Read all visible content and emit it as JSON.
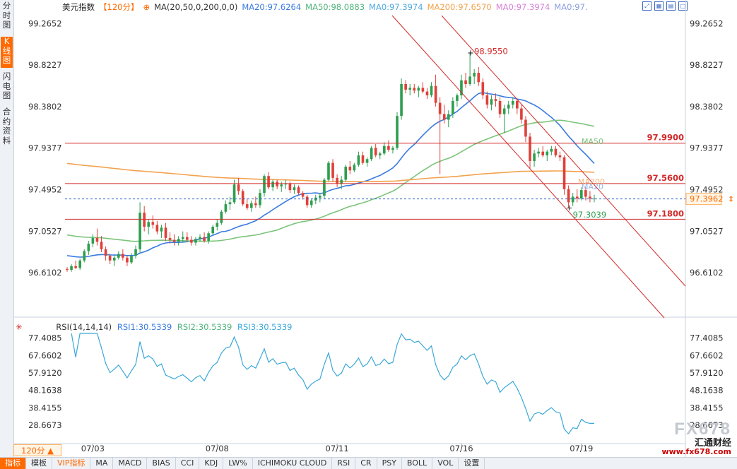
{
  "header": {
    "symbol": "美元指数",
    "period": "【120分】",
    "ma_label": "MA(20,50,0,200,0,0)",
    "ma20": "MA20:97.6264",
    "ma50": "MA50:98.0883",
    "ma0a": "MA0:97.3974",
    "ma200": "MA200:97.6570",
    "ma0b": "MA0:97.3974",
    "ma0c": "MA0:97."
  },
  "sidebar": [
    "分时图",
    "K线图",
    "闪电图",
    "合约资料"
  ],
  "price_axis": [
    "99.2652",
    "98.8227",
    "98.3802",
    "97.9377",
    "97.4952",
    "97.0527",
    "96.6102"
  ],
  "rsi_axis": [
    "77.4085",
    "67.6602",
    "57.9120",
    "48.1638",
    "38.4155",
    "28.6673"
  ],
  "dates": [
    "07/03",
    "07/08",
    "07/11",
    "07/16",
    "07/19"
  ],
  "levels": [
    "97.9900",
    "97.5600",
    "97.1800"
  ],
  "current_price": "97.3962",
  "high_label": "98.9550",
  "low_label": "97.3039",
  "line_labels": {
    "ma50": "MA50",
    "ma200": "MA200",
    "ma20": "MA20"
  },
  "rsi_header": {
    "title": "RSI(14,14,14)",
    "rsi1": "RSI1:30.5339",
    "rsi2": "RSI2:30.5339",
    "rsi3": "RSI3:30.5339"
  },
  "period_select": "120分 ▲",
  "bottom_tabs": [
    "指标",
    "模板",
    "VIP指标",
    "MA",
    "MACD",
    "BIAS",
    "CCI",
    "KDJ",
    "LW%",
    "ICHIMOKU CLOUD",
    "RSI",
    "CR",
    "PSY",
    "BOLL",
    "VOL",
    "设置"
  ],
  "watermark": {
    "logo": "FX678",
    "cn": "汇通财经",
    "url": "www.fx678.com"
  },
  "colors": {
    "up": "#2e9e4f",
    "down": "#e0403a",
    "ma20": "#3a7be0",
    "ma50": "#7cc47a",
    "ma200": "#f2a24e",
    "level": "#d32a2a",
    "current": "#2b63c4",
    "rsi": "#3aa8d8",
    "accent": "#ff6a00"
  },
  "chart_data": {
    "type": "candlestick",
    "price_range": [
      96.43,
      99.35
    ],
    "rsi_range": [
      20,
      80
    ],
    "candles": [
      [
        96.65,
        96.67,
        96.62,
        96.64
      ],
      [
        96.64,
        96.7,
        96.62,
        96.68
      ],
      [
        96.68,
        96.74,
        96.65,
        96.66
      ],
      [
        96.66,
        96.76,
        96.64,
        96.74
      ],
      [
        96.74,
        96.86,
        96.72,
        96.84
      ],
      [
        96.84,
        96.95,
        96.8,
        96.92
      ],
      [
        96.92,
        97.02,
        96.88,
        96.98
      ],
      [
        96.98,
        97.08,
        96.9,
        96.94
      ],
      [
        96.94,
        97.0,
        96.83,
        96.86
      ],
      [
        96.86,
        96.89,
        96.74,
        96.79
      ],
      [
        96.79,
        96.81,
        96.7,
        96.74
      ],
      [
        96.74,
        96.8,
        96.68,
        96.77
      ],
      [
        96.77,
        96.84,
        96.75,
        96.81
      ],
      [
        96.81,
        96.86,
        96.74,
        96.77
      ],
      [
        96.77,
        96.79,
        96.68,
        96.72
      ],
      [
        96.72,
        96.82,
        96.7,
        96.79
      ],
      [
        96.79,
        96.9,
        96.76,
        96.86
      ],
      [
        96.86,
        97.36,
        96.82,
        97.25
      ],
      [
        97.25,
        97.32,
        97.05,
        97.1
      ],
      [
        97.1,
        97.18,
        97.02,
        97.15
      ],
      [
        97.15,
        97.22,
        97.08,
        97.12
      ],
      [
        97.12,
        97.16,
        97.02,
        97.05
      ],
      [
        97.05,
        97.12,
        96.98,
        97.09
      ],
      [
        97.09,
        97.14,
        96.95,
        96.98
      ],
      [
        96.98,
        97.04,
        96.92,
        96.96
      ],
      [
        96.96,
        97.02,
        96.9,
        96.94
      ],
      [
        96.94,
        97.0,
        96.9,
        96.97
      ],
      [
        96.97,
        97.05,
        96.93,
        96.99
      ],
      [
        96.99,
        97.04,
        96.94,
        96.96
      ],
      [
        96.96,
        97.0,
        96.9,
        96.93
      ],
      [
        96.93,
        96.99,
        96.9,
        96.97
      ],
      [
        96.97,
        97.02,
        96.94,
        96.99
      ],
      [
        96.99,
        97.04,
        96.93,
        96.95
      ],
      [
        96.95,
        97.05,
        96.92,
        97.03
      ],
      [
        97.03,
        97.12,
        97.01,
        97.1
      ],
      [
        97.1,
        97.18,
        97.06,
        97.14
      ],
      [
        97.14,
        97.28,
        97.12,
        97.26
      ],
      [
        97.26,
        97.38,
        97.24,
        97.34
      ],
      [
        97.34,
        97.42,
        97.28,
        97.36
      ],
      [
        97.36,
        97.6,
        97.34,
        97.55
      ],
      [
        97.55,
        97.62,
        97.44,
        97.48
      ],
      [
        97.48,
        97.5,
        97.32,
        97.34
      ],
      [
        97.34,
        97.4,
        97.28,
        97.3
      ],
      [
        97.3,
        97.38,
        97.26,
        97.35
      ],
      [
        97.35,
        97.42,
        97.3,
        97.33
      ],
      [
        97.33,
        97.5,
        97.3,
        97.46
      ],
      [
        97.46,
        97.66,
        97.42,
        97.64
      ],
      [
        97.64,
        97.68,
        97.5,
        97.52
      ],
      [
        97.52,
        97.6,
        97.48,
        97.58
      ],
      [
        97.58,
        97.6,
        97.5,
        97.53
      ],
      [
        97.53,
        97.58,
        97.47,
        97.55
      ],
      [
        97.55,
        97.6,
        97.5,
        97.56
      ],
      [
        97.56,
        97.58,
        97.46,
        97.49
      ],
      [
        97.49,
        97.55,
        97.45,
        97.52
      ],
      [
        97.52,
        97.54,
        97.44,
        97.46
      ],
      [
        97.46,
        97.48,
        97.39,
        97.42
      ],
      [
        97.42,
        97.44,
        97.3,
        97.33
      ],
      [
        97.33,
        97.4,
        97.3,
        97.38
      ],
      [
        97.38,
        97.44,
        97.34,
        97.41
      ],
      [
        97.41,
        97.46,
        97.36,
        97.43
      ],
      [
        97.43,
        97.62,
        97.4,
        97.6
      ],
      [
        97.6,
        97.8,
        97.58,
        97.78
      ],
      [
        97.78,
        97.82,
        97.58,
        97.62
      ],
      [
        97.62,
        97.66,
        97.52,
        97.56
      ],
      [
        97.56,
        97.64,
        97.5,
        97.6
      ],
      [
        97.6,
        97.76,
        97.58,
        97.74
      ],
      [
        97.74,
        97.8,
        97.66,
        97.7
      ],
      [
        97.7,
        97.78,
        97.68,
        97.76
      ],
      [
        97.76,
        97.9,
        97.74,
        97.86
      ],
      [
        97.86,
        97.9,
        97.76,
        97.78
      ],
      [
        97.78,
        97.84,
        97.74,
        97.82
      ],
      [
        97.82,
        97.96,
        97.8,
        97.94
      ],
      [
        97.94,
        97.98,
        97.84,
        97.86
      ],
      [
        97.86,
        97.9,
        97.82,
        97.88
      ],
      [
        97.88,
        98.0,
        97.86,
        97.96
      ],
      [
        97.96,
        98.02,
        97.9,
        97.92
      ],
      [
        97.92,
        97.96,
        97.88,
        97.94
      ],
      [
        97.94,
        98.32,
        97.92,
        98.28
      ],
      [
        98.28,
        98.68,
        98.24,
        98.62
      ],
      [
        98.62,
        98.66,
        98.52,
        98.56
      ],
      [
        98.56,
        98.62,
        98.5,
        98.58
      ],
      [
        98.58,
        98.62,
        98.52,
        98.55
      ],
      [
        98.55,
        98.6,
        98.48,
        98.58
      ],
      [
        98.58,
        98.64,
        98.52,
        98.54
      ],
      [
        98.54,
        98.58,
        98.46,
        98.5
      ],
      [
        98.5,
        98.64,
        98.48,
        98.6
      ],
      [
        98.6,
        98.72,
        98.38,
        98.42
      ],
      [
        98.42,
        98.48,
        97.66,
        98.3
      ],
      [
        98.3,
        98.4,
        98.2,
        98.24
      ],
      [
        98.24,
        98.34,
        98.16,
        98.3
      ],
      [
        98.3,
        98.48,
        98.26,
        98.44
      ],
      [
        98.44,
        98.52,
        98.38,
        98.5
      ],
      [
        98.5,
        98.72,
        98.46,
        98.66
      ],
      [
        98.66,
        98.74,
        98.58,
        98.62
      ],
      [
        98.62,
        98.96,
        98.6,
        98.7
      ],
      [
        98.7,
        98.78,
        98.62,
        98.74
      ],
      [
        98.74,
        98.8,
        98.6,
        98.64
      ],
      [
        98.64,
        98.68,
        98.46,
        98.5
      ],
      [
        98.5,
        98.54,
        98.36,
        98.4
      ],
      [
        98.4,
        98.5,
        98.34,
        98.46
      ],
      [
        98.46,
        98.52,
        98.38,
        98.44
      ],
      [
        98.44,
        98.48,
        98.26,
        98.3
      ],
      [
        98.3,
        98.4,
        98.1,
        98.36
      ],
      [
        98.36,
        98.44,
        98.3,
        98.4
      ],
      [
        98.4,
        98.48,
        98.36,
        98.44
      ],
      [
        98.44,
        98.46,
        98.3,
        98.36
      ],
      [
        98.36,
        98.4,
        98.2,
        98.24
      ],
      [
        98.24,
        98.28,
        98.0,
        98.06
      ],
      [
        98.06,
        98.1,
        97.72,
        97.8
      ],
      [
        97.8,
        97.92,
        97.74,
        97.88
      ],
      [
        97.88,
        97.94,
        97.84,
        97.9
      ],
      [
        97.9,
        97.96,
        97.84,
        97.86
      ],
      [
        97.86,
        97.92,
        97.8,
        97.9
      ],
      [
        97.9,
        97.96,
        97.86,
        97.93
      ],
      [
        97.93,
        97.96,
        97.84,
        97.86
      ],
      [
        97.86,
        97.9,
        97.8,
        97.84
      ],
      [
        97.84,
        97.86,
        97.44,
        97.5
      ],
      [
        97.5,
        97.54,
        97.3,
        97.36
      ],
      [
        97.36,
        97.46,
        97.32,
        97.42
      ],
      [
        97.42,
        97.5,
        97.36,
        97.4
      ],
      [
        97.4,
        97.52,
        97.38,
        97.49
      ],
      [
        97.49,
        97.52,
        97.38,
        97.42
      ],
      [
        97.42,
        97.48,
        97.36,
        97.4
      ],
      [
        97.4,
        97.44,
        97.36,
        97.4
      ]
    ]
  }
}
